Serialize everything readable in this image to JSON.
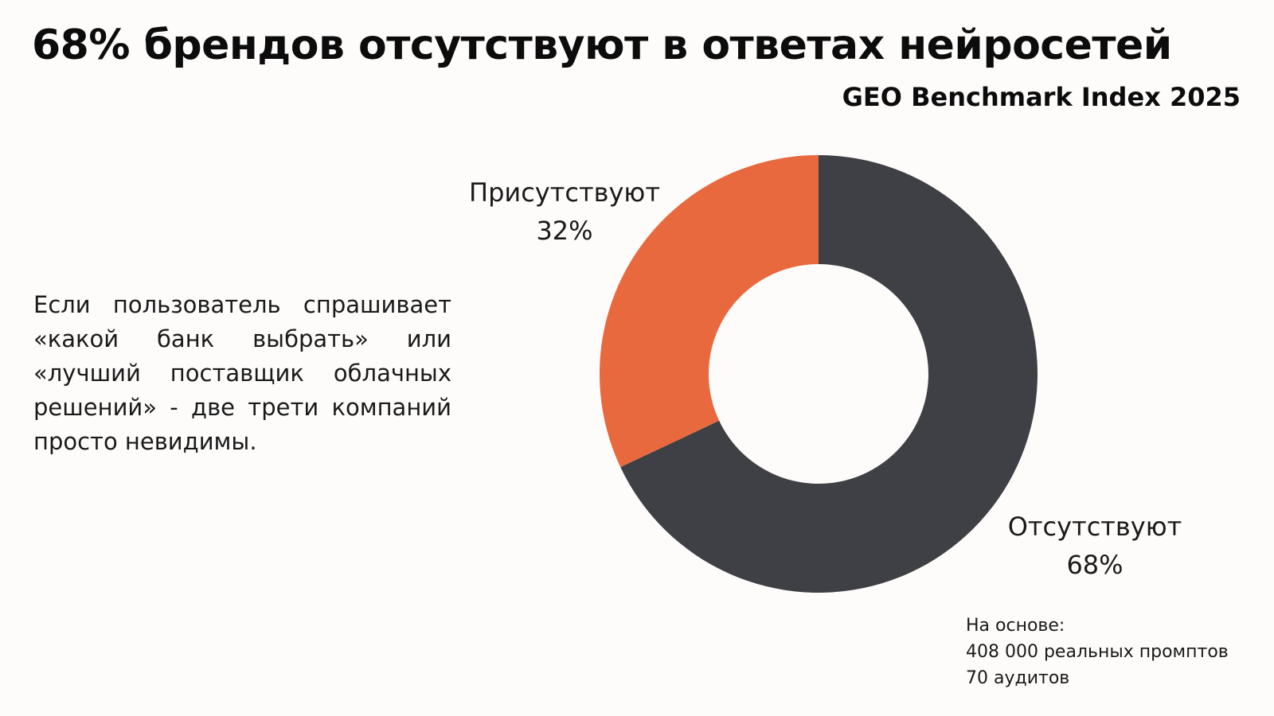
{
  "title": "68% брендов отсутствуют в ответах нейросетей",
  "subtitle": "GEO Benchmark Index 2025",
  "body_text": "Если пользователь спрашивает «какой банк выбрать» или «лучший поставщик облачных решений» - две трети компаний просто невидимы.",
  "footnote": {
    "line1": "На основе:",
    "line2": "408 000 реальных промптов",
    "line3": "70 аудитов"
  },
  "colors": {
    "present": "#e8693d",
    "absent": "#3f4045",
    "background": "#fdfcfb"
  },
  "chart_data": {
    "type": "pie",
    "donut": true,
    "title": "68% брендов отсутствуют в ответах нейросетей",
    "subtitle": "GEO Benchmark Index 2025",
    "slices": [
      {
        "name": "Отсутствуют",
        "value": 68,
        "label": "68%",
        "color": "#3f4045"
      },
      {
        "name": "Присутствуют",
        "value": 32,
        "label": "32%",
        "color": "#e8693d"
      }
    ]
  }
}
